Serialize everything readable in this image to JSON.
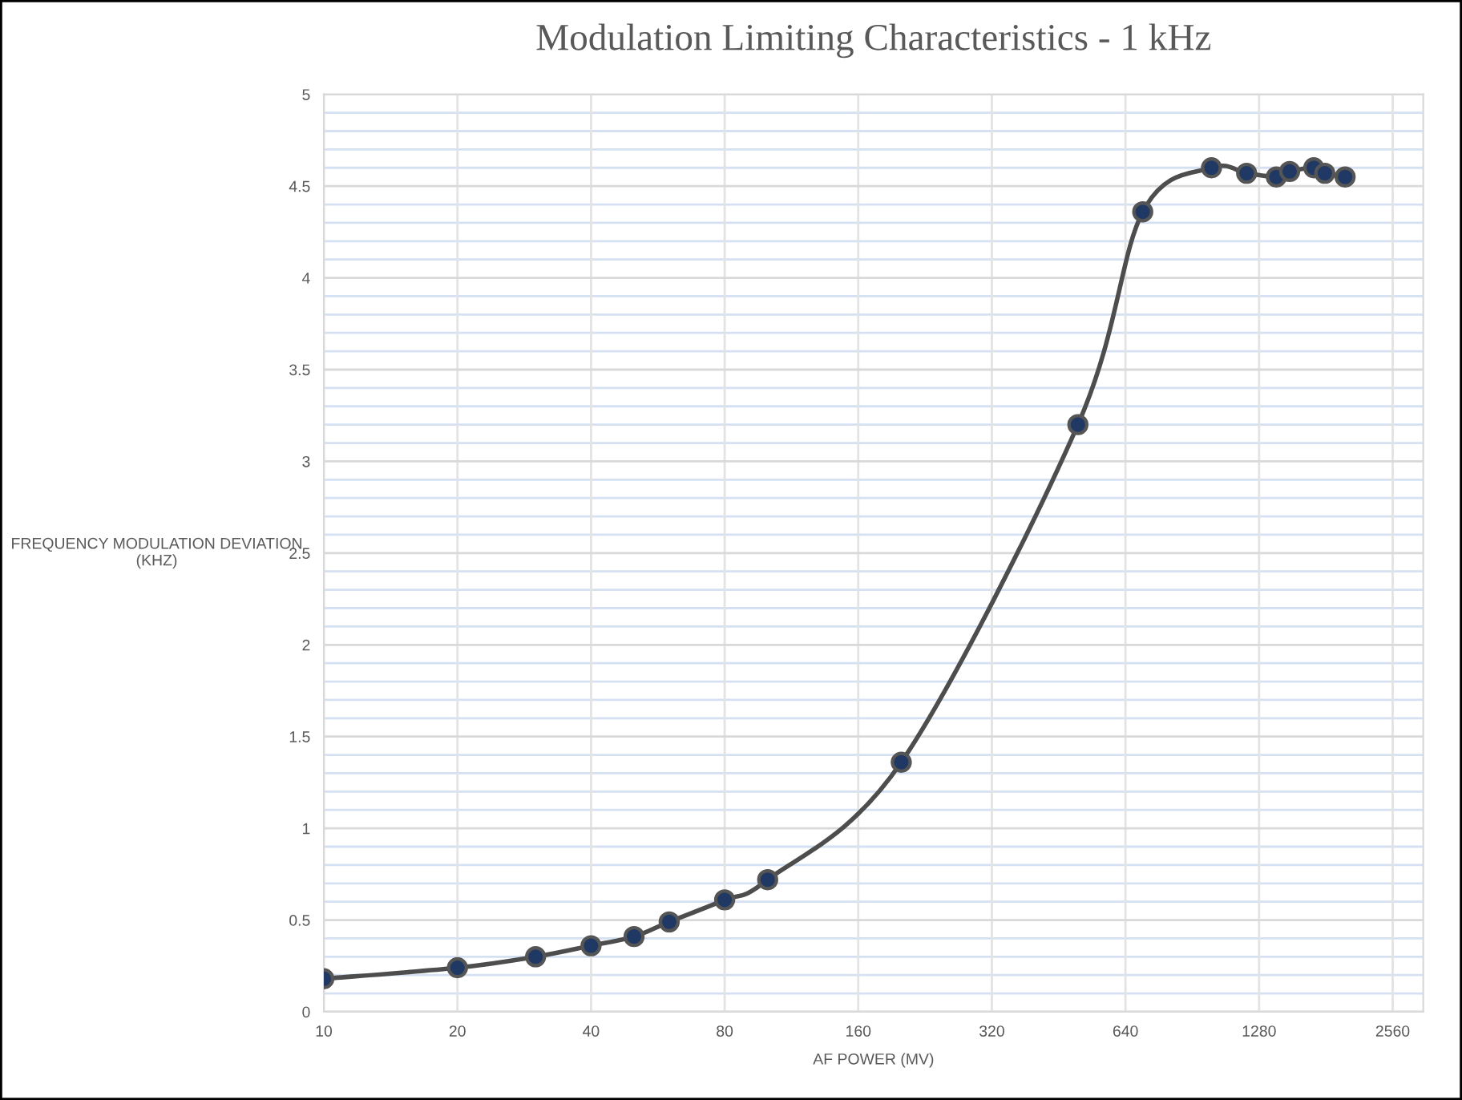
{
  "chart_data": {
    "type": "line",
    "title": "Modulation Limiting Characteristics - 1 kHz",
    "xlabel": "AF POWER (MV)",
    "ylabel": "FREQUENCY MODULATION DEVIATION\n(KHZ)",
    "log": "x",
    "series": [
      {
        "color": "#1f3864",
        "x": [
          10,
          20,
          30,
          40,
          50,
          60,
          80,
          100,
          200,
          500,
          700,
          1000,
          1200,
          1400,
          1500,
          1700,
          1800,
          2000
        ],
        "values": [
          0.18,
          0.24,
          0.3,
          0.36,
          0.41,
          0.49,
          0.61,
          0.72,
          1.36,
          3.2,
          4.36,
          4.6,
          4.57,
          4.55,
          4.58,
          4.6,
          4.57,
          4.55
        ]
      }
    ],
    "xlim": [
      10,
      3000
    ],
    "xticks": [
      10,
      20,
      40,
      80,
      160,
      320,
      640,
      1280,
      2560
    ],
    "ylim": [
      0,
      5
    ],
    "yticks": [
      0,
      0.5,
      1,
      1.5,
      2,
      2.5,
      3,
      3.5,
      4,
      4.5,
      5
    ],
    "grid": true,
    "legend": false,
    "marker": "circle",
    "line_style": "solid"
  }
}
